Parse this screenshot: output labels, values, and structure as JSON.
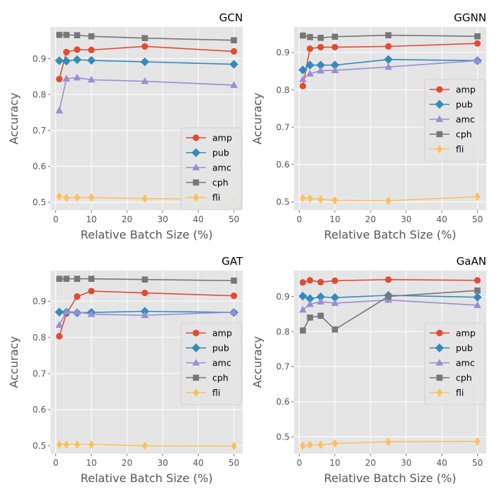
{
  "chart_data": [
    {
      "type": "line",
      "title": "GCN",
      "xlabel": "Relative Batch Size (%)",
      "ylabel": "Accuracy",
      "xlim": [
        -1.5,
        52.5
      ],
      "ylim": [
        0.478,
        0.988
      ],
      "xticks": [
        "0",
        "10",
        "20",
        "30",
        "40",
        "50"
      ],
      "yticks": [
        "0.5",
        "0.6",
        "0.7",
        "0.8",
        "0.9"
      ],
      "grid": true,
      "legend_position": "lower-right",
      "x": [
        1,
        3,
        6,
        10,
        25,
        50
      ],
      "series": [
        {
          "name": "amp",
          "values": [
            0.843,
            0.918,
            0.925,
            0.924,
            0.934,
            0.92
          ]
        },
        {
          "name": "pub",
          "values": [
            0.894,
            0.893,
            0.897,
            0.895,
            0.891,
            0.884
          ]
        },
        {
          "name": "amc",
          "values": [
            0.755,
            0.844,
            0.847,
            0.841,
            0.837,
            0.826
          ]
        },
        {
          "name": "cph",
          "values": [
            0.966,
            0.966,
            0.965,
            0.962,
            0.957,
            0.951
          ]
        },
        {
          "name": "fli",
          "values": [
            0.516,
            0.512,
            0.513,
            0.513,
            0.51,
            0.509
          ]
        }
      ]
    },
    {
      "type": "line",
      "title": "GGNN",
      "xlabel": "Relative Batch Size (%)",
      "ylabel": "Accuracy",
      "xlim": [
        -1.5,
        52.5
      ],
      "ylim": [
        0.478,
        0.968
      ],
      "xticks": [
        "0",
        "10",
        "20",
        "30",
        "40",
        "50"
      ],
      "yticks": [
        "0.5",
        "0.6",
        "0.7",
        "0.8",
        "0.9"
      ],
      "grid": true,
      "legend_position": "center-right",
      "x": [
        1,
        3,
        6,
        10,
        25,
        50
      ],
      "series": [
        {
          "name": "amp",
          "values": [
            0.81,
            0.91,
            0.914,
            0.914,
            0.916,
            0.924
          ]
        },
        {
          "name": "pub",
          "values": [
            0.853,
            0.866,
            0.866,
            0.866,
            0.881,
            0.878
          ]
        },
        {
          "name": "amc",
          "values": [
            0.828,
            0.843,
            0.851,
            0.852,
            0.861,
            0.878
          ]
        },
        {
          "name": "cph",
          "values": [
            0.945,
            0.941,
            0.939,
            0.942,
            0.946,
            0.943
          ]
        },
        {
          "name": "fli",
          "values": [
            0.51,
            0.509,
            0.507,
            0.504,
            0.503,
            0.514
          ]
        }
      ]
    },
    {
      "type": "line",
      "title": "GAT",
      "xlabel": "Relative Batch Size (%)",
      "ylabel": "Accuracy",
      "xlim": [
        -1.5,
        52.5
      ],
      "ylim": [
        0.478,
        0.985
      ],
      "xticks": [
        "0",
        "10",
        "20",
        "30",
        "40",
        "50"
      ],
      "yticks": [
        "0.5",
        "0.6",
        "0.7",
        "0.8",
        "0.9"
      ],
      "grid": true,
      "legend_position": "lower-right",
      "x": [
        1,
        3,
        6,
        10,
        25,
        50
      ],
      "series": [
        {
          "name": "amp",
          "values": [
            0.803,
            0.866,
            0.913,
            0.928,
            0.923,
            0.915
          ]
        },
        {
          "name": "pub",
          "values": [
            0.87,
            0.87,
            0.868,
            0.869,
            0.872,
            0.869
          ]
        },
        {
          "name": "amc",
          "values": [
            0.834,
            0.871,
            0.87,
            0.864,
            0.861,
            0.87
          ]
        },
        {
          "name": "cph",
          "values": [
            0.962,
            0.962,
            0.962,
            0.962,
            0.96,
            0.957
          ]
        },
        {
          "name": "fli",
          "values": [
            0.503,
            0.503,
            0.503,
            0.503,
            0.5,
            0.499
          ]
        }
      ]
    },
    {
      "type": "line",
      "title": "GaAN",
      "xlabel": "Relative Batch Size (%)",
      "ylabel": "Accuracy",
      "xlim": [
        -1.5,
        52.5
      ],
      "ylim": [
        0.452,
        0.974
      ],
      "xticks": [
        "0",
        "10",
        "20",
        "30",
        "40",
        "50"
      ],
      "yticks": [
        "0.5",
        "0.6",
        "0.7",
        "0.8",
        "0.9"
      ],
      "grid": true,
      "legend_position": "center-right",
      "x": [
        1,
        3,
        6,
        10,
        25,
        50
      ],
      "series": [
        {
          "name": "amp",
          "values": [
            0.94,
            0.946,
            0.941,
            0.945,
            0.948,
            0.946
          ]
        },
        {
          "name": "pub",
          "values": [
            0.901,
            0.894,
            0.899,
            0.897,
            0.903,
            0.898
          ]
        },
        {
          "name": "amc",
          "values": [
            0.862,
            0.878,
            0.885,
            0.881,
            0.89,
            0.875
          ]
        },
        {
          "name": "cph",
          "values": [
            0.803,
            0.84,
            0.845,
            0.806,
            0.9,
            0.917
          ]
        },
        {
          "name": "fli",
          "values": [
            0.475,
            0.477,
            0.477,
            0.481,
            0.486,
            0.487
          ]
        }
      ]
    }
  ],
  "styles": {
    "colors": {
      "amp": "#E24A33",
      "pub": "#348ABD",
      "amc": "#988ED5",
      "cph": "#777777",
      "fli": "#FBC15E"
    },
    "markers": {
      "amp": "circle",
      "pub": "diamond",
      "amc": "triangle-up",
      "cph": "square",
      "fli": "thin-diamond"
    },
    "panel_background": "#E5E5E5",
    "grid_color": "#FFFFFF"
  }
}
